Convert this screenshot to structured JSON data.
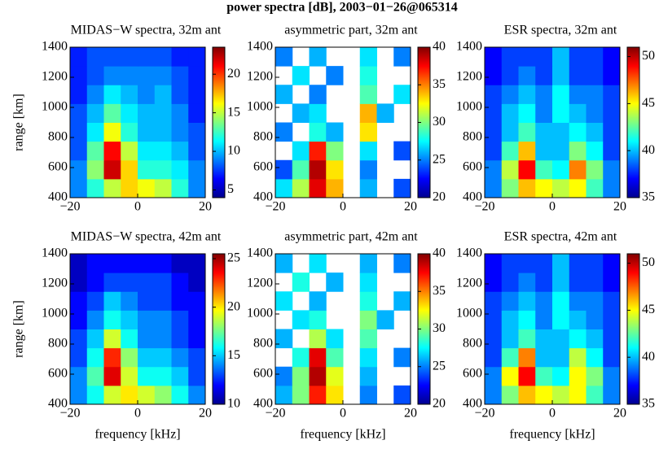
{
  "title": "power spectra [dB], 2003−01−26@065314",
  "chart_data": [
    {
      "type": "heatmap",
      "title": "MIDAS−W spectra, 32m ant",
      "ylabel": "range [km]",
      "colormap": "jet",
      "xlim": [
        -20,
        20
      ],
      "ylim": [
        400,
        1400
      ],
      "xticks": [
        {
          "value": -20,
          "label": "−20"
        },
        0,
        20
      ],
      "yticks": [
        400,
        600,
        800,
        1000,
        1200,
        1400
      ],
      "clim": [
        4,
        23.5
      ],
      "cticks": [
        5,
        10,
        15,
        20
      ],
      "z": [
        [
          9,
          12,
          15,
          17,
          16,
          15,
          12,
          9
        ],
        [
          9,
          14,
          22,
          17,
          12,
          12,
          11,
          9
        ],
        [
          8,
          13,
          21,
          15,
          11,
          11,
          10,
          8
        ],
        [
          8,
          11,
          16,
          12,
          10,
          10,
          9,
          8
        ],
        [
          8,
          10,
          13,
          11,
          10,
          10,
          9,
          7
        ],
        [
          7,
          9,
          11,
          10,
          9,
          10,
          8,
          7
        ],
        [
          7,
          8,
          9,
          9,
          9,
          9,
          8,
          7
        ],
        [
          7,
          8,
          8,
          8,
          8,
          8,
          7,
          7
        ]
      ]
    },
    {
      "type": "heatmap",
      "title": "asymmetric part, 32m ant",
      "colormap": "jet",
      "xlim": [
        -20,
        20
      ],
      "ylim": [
        400,
        1400
      ],
      "xticks": [
        {
          "value": -20,
          "label": "−20"
        },
        0,
        20
      ],
      "yticks": [
        400,
        600,
        800,
        1000,
        1200,
        1400
      ],
      "clim": [
        20,
        40
      ],
      "cticks": [
        20,
        25,
        30,
        35,
        40
      ],
      "z": [
        [
          27,
          31,
          38,
          34,
          null,
          26,
          null,
          24
        ],
        [
          24,
          29,
          39,
          33,
          null,
          25,
          null,
          null
        ],
        [
          null,
          27,
          37,
          30,
          null,
          27,
          null,
          24
        ],
        [
          25,
          null,
          28,
          26,
          null,
          33,
          null,
          null
        ],
        [
          null,
          26,
          27,
          null,
          null,
          34,
          26,
          null
        ],
        [
          26,
          null,
          25,
          null,
          null,
          29,
          null,
          27
        ],
        [
          null,
          27,
          null,
          25,
          null,
          28,
          null,
          null
        ],
        [
          25,
          null,
          26,
          null,
          null,
          27,
          null,
          25
        ]
      ]
    },
    {
      "type": "heatmap",
      "title": "ESR spectra, 32m ant",
      "colormap": "jet",
      "xlim": [
        -20,
        20
      ],
      "ylim": [
        400,
        1400
      ],
      "xticks": [
        {
          "value": -20,
          "label": "−20"
        },
        0,
        20
      ],
      "yticks": [
        400,
        600,
        800,
        1000,
        1200,
        1400
      ],
      "clim": [
        35,
        51
      ],
      "cticks": [
        35,
        40,
        45,
        50
      ],
      "z": [
        [
          39,
          43,
          46,
          45,
          44,
          45,
          42,
          39
        ],
        [
          39,
          44,
          49,
          42,
          41,
          47,
          43,
          39
        ],
        [
          38,
          42,
          46,
          40,
          40,
          43,
          41,
          38
        ],
        [
          38,
          40,
          42,
          40,
          40,
          41,
          40,
          38
        ],
        [
          38,
          40,
          41,
          39,
          41,
          40,
          39,
          38
        ],
        [
          38,
          39,
          40,
          39,
          41,
          39,
          39,
          38
        ],
        [
          37,
          38,
          39,
          38,
          40,
          38,
          38,
          37
        ],
        [
          37,
          38,
          38,
          38,
          40,
          38,
          38,
          37
        ]
      ]
    },
    {
      "type": "heatmap",
      "title": "MIDAS−W spectra, 42m ant",
      "xlabel": "frequency [kHz]",
      "ylabel": "range [km]",
      "colormap": "jet",
      "xlim": [
        -20,
        20
      ],
      "ylim": [
        400,
        1400
      ],
      "xticks": [
        {
          "value": -20,
          "label": "−20"
        },
        0,
        20
      ],
      "yticks": [
        400,
        600,
        800,
        1000,
        1200,
        1400
      ],
      "clim": [
        10,
        25.5
      ],
      "cticks": [
        10,
        15,
        20,
        25
      ],
      "z": [
        [
          14,
          16,
          19,
          20,
          19,
          18,
          16,
          14
        ],
        [
          14,
          17,
          24,
          19,
          16,
          16,
          15,
          13
        ],
        [
          13,
          16,
          23,
          18,
          15,
          15,
          14,
          13
        ],
        [
          13,
          15,
          19,
          16,
          14,
          14,
          13,
          12
        ],
        [
          12,
          14,
          16,
          15,
          14,
          14,
          13,
          12
        ],
        [
          12,
          13,
          15,
          14,
          13,
          13,
          12,
          12
        ],
        [
          11,
          12,
          13,
          13,
          13,
          13,
          12,
          11
        ],
        [
          11,
          12,
          12,
          12,
          12,
          12,
          11,
          11
        ]
      ]
    },
    {
      "type": "heatmap",
      "title": "asymmetric part, 42m ant",
      "xlabel": "frequency [kHz]",
      "colormap": "jet",
      "xlim": [
        -20,
        20
      ],
      "ylim": [
        400,
        1400
      ],
      "xticks": [
        {
          "value": -20,
          "label": "−20"
        },
        0,
        20
      ],
      "yticks": [
        400,
        600,
        800,
        1000,
        1200,
        1400
      ],
      "clim": [
        20,
        40
      ],
      "cticks": [
        20,
        25,
        30,
        35,
        40
      ],
      "z": [
        [
          26,
          30,
          37,
          33,
          null,
          25,
          null,
          24
        ],
        [
          25,
          30,
          39,
          32,
          null,
          26,
          null,
          null
        ],
        [
          null,
          28,
          38,
          29,
          null,
          27,
          null,
          25
        ],
        [
          26,
          null,
          31,
          27,
          null,
          29,
          null,
          null
        ],
        [
          null,
          27,
          28,
          null,
          null,
          30,
          26,
          null
        ],
        [
          27,
          null,
          26,
          null,
          null,
          28,
          null,
          26
        ],
        [
          null,
          28,
          null,
          26,
          null,
          27,
          null,
          null
        ],
        [
          26,
          null,
          27,
          null,
          null,
          26,
          null,
          25
        ]
      ]
    },
    {
      "type": "heatmap",
      "title": "ESR spectra, 42m ant",
      "xlabel": "frequency [kHz]",
      "colormap": "jet",
      "xlim": [
        -20,
        20
      ],
      "ylim": [
        400,
        1400
      ],
      "xticks": [
        {
          "value": -20,
          "label": "−20"
        },
        0,
        20
      ],
      "yticks": [
        400,
        600,
        800,
        1000,
        1200,
        1400
      ],
      "clim": [
        35,
        51
      ],
      "cticks": [
        35,
        40,
        45,
        50
      ],
      "z": [
        [
          39,
          43,
          46,
          45,
          44,
          45,
          42,
          39
        ],
        [
          39,
          45,
          49,
          42,
          41,
          45,
          43,
          39
        ],
        [
          38,
          42,
          47,
          40,
          40,
          44,
          41,
          38
        ],
        [
          38,
          40,
          42,
          40,
          40,
          41,
          40,
          38
        ],
        [
          38,
          40,
          41,
          39,
          41,
          40,
          39,
          38
        ],
        [
          38,
          39,
          40,
          39,
          41,
          39,
          39,
          38
        ],
        [
          37,
          38,
          39,
          38,
          40,
          38,
          38,
          37
        ],
        [
          37,
          38,
          38,
          38,
          40,
          38,
          38,
          37
        ]
      ]
    }
  ]
}
